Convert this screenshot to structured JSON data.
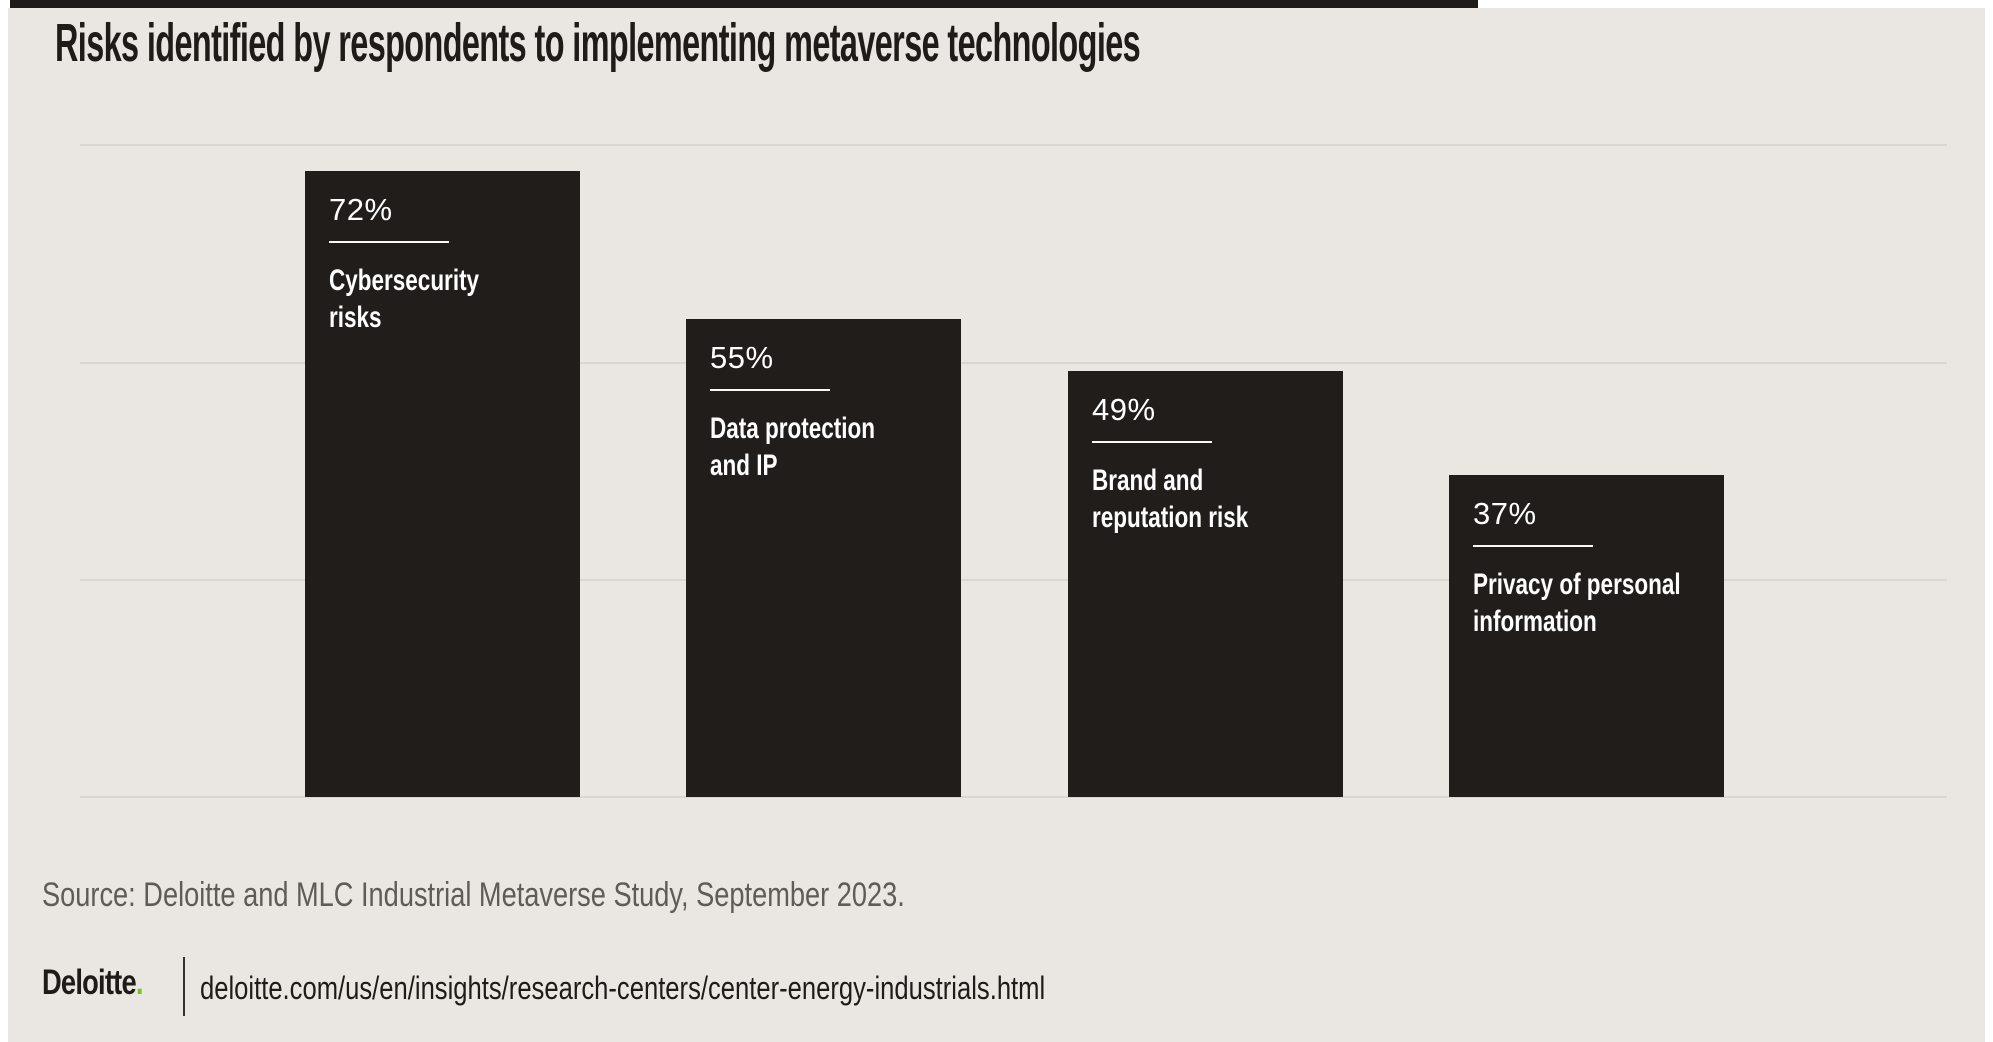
{
  "title": "Risks identified by respondents to implementing metaverse technologies",
  "chart_data": {
    "type": "bar",
    "title": "Risks identified by respondents to implementing metaverse technologies",
    "categories": [
      "Cybersecurity risks",
      "Data protection and IP",
      "Brand and reputation risk",
      "Privacy of personal information"
    ],
    "values": [
      72,
      55,
      49,
      37
    ],
    "unit": "%",
    "ylim": [
      0,
      80
    ],
    "gridlines_pct": [
      75,
      50,
      25,
      0
    ],
    "grid": "on",
    "legend": "none",
    "xlabel": "",
    "ylabel": "",
    "bars": [
      {
        "pct": "72%",
        "label": "Cybersecurity\nrisks"
      },
      {
        "pct": "55%",
        "label": "Data protection\nand IP"
      },
      {
        "pct": "49%",
        "label": "Brand and\nreputation risk"
      },
      {
        "pct": "37%",
        "label": "Privacy of personal\ninformation"
      }
    ]
  },
  "source": "Source: Deloitte and MLC Industrial Metaverse Study, September 2023.",
  "footer": {
    "logo_text": "Deloitte",
    "logo_dot": ".",
    "url": "deloitte.com/us/en/insights/research-centers/center-energy-industrials.html"
  },
  "colors": {
    "background": "#eae6e2",
    "bar": "#201d1b",
    "bar_text": "#ffffff",
    "gridline": "#dbd6d1",
    "title_ink": "#1e1b19",
    "source_gray": "#5f5b57",
    "deloitte_green": "#86bc25"
  }
}
